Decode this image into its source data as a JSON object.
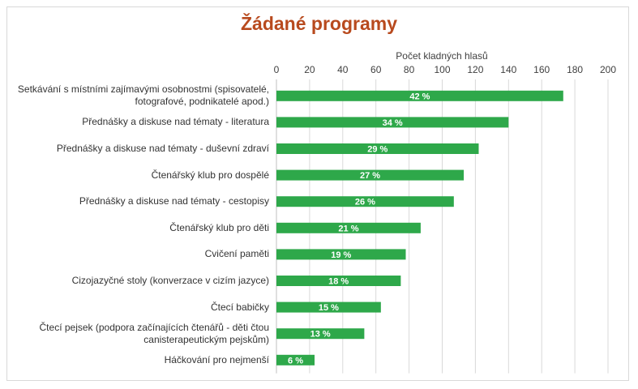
{
  "chart_data": {
    "type": "bar",
    "orientation": "horizontal",
    "title": "Žádané programy",
    "xlabel": "Počet kladných hlasů",
    "ylabel": "",
    "xlim": [
      0,
      200
    ],
    "ticks": [
      "0",
      "20",
      "40",
      "60",
      "80",
      "100",
      "120",
      "140",
      "160",
      "180",
      "200"
    ],
    "grid": true,
    "color": "#2ea84a",
    "categories": [
      [
        "Setkávání s místními zajímavými osobnostmi (spisovatelé,",
        "fotografové, podnikatelé apod.)"
      ],
      [
        "Přednášky a diskuse nad tématy - literatura"
      ],
      [
        "Přednášky a diskuse nad tématy - duševní zdraví"
      ],
      [
        "Čtenářský klub pro dospělé"
      ],
      [
        "Přednášky a diskuse nad tématy - cestopisy"
      ],
      [
        "Čtenářský klub pro děti"
      ],
      [
        "Cvičení paměti"
      ],
      [
        "Cizojazyčné stoly (konverzace v cizím jazyce)"
      ],
      [
        "Čtecí babičky"
      ],
      [
        "Čtecí pejsek (podpora začínajících čtenářů - děti čtou",
        "canisterapeutickým pejskům)"
      ],
      [
        "Háčkování pro nejmenší"
      ]
    ],
    "values": [
      173,
      140,
      122,
      113,
      107,
      87,
      78,
      75,
      63,
      53,
      23
    ],
    "data_labels": [
      "42 %",
      "34 %",
      "29 %",
      "27 %",
      "26 %",
      "21 %",
      "19 %",
      "18 %",
      "15 %",
      "13 %",
      "6 %"
    ]
  }
}
